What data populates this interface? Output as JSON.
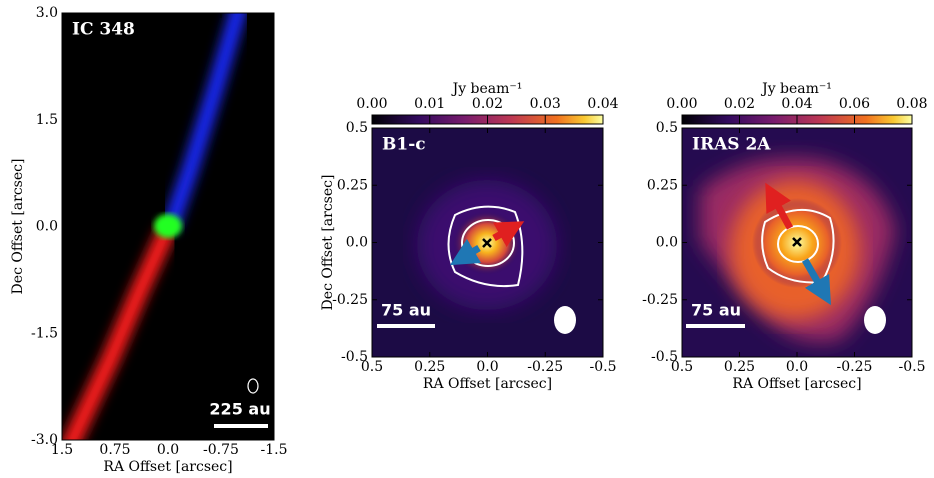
{
  "chart_data": [
    {
      "type": "image",
      "title": "IC 348",
      "scalebar": "225 au",
      "xlabel": "RA Offset [arcsec]",
      "ylabel": "Dec Offset [arcsec]",
      "xlim": [
        1.5,
        -1.5
      ],
      "ylim": [
        -3,
        3
      ],
      "xticks": [
        1.5,
        0.75,
        {
          "value": 0,
          "label": "0.0"
        },
        -0.75,
        -1.5
      ],
      "yticks": [
        {
          "value": 3,
          "label": "3.0"
        },
        1.5,
        {
          "value": 0,
          "label": "0.0"
        },
        -1.5,
        {
          "value": -3,
          "label": "-3.0"
        }
      ]
    },
    {
      "type": "image",
      "title": "B1-c",
      "scalebar": "75 au",
      "xlabel": "RA Offset [arcsec]",
      "ylabel": "Dec Offset [arcsec]",
      "xlim": [
        0.5,
        -0.5
      ],
      "ylim": [
        -0.5,
        0.5
      ],
      "xticks": [
        0.5,
        0.25,
        {
          "value": 0,
          "label": "0.0"
        },
        -0.25,
        -0.5
      ],
      "yticks": [
        0.5,
        0.25,
        {
          "value": 0,
          "label": "0.0"
        },
        -0.25,
        -0.5
      ],
      "colorbar_label": "Jy beam⁻¹",
      "clim": [
        0,
        0.04
      ],
      "cticks": [
        {
          "value": 0,
          "label": "0.00"
        },
        0.01,
        0.02,
        0.03,
        0.04
      ]
    },
    {
      "type": "image",
      "title": "IRAS 2A",
      "scalebar": "75 au",
      "xlabel": "RA Offset [arcsec]",
      "xlim": [
        0.5,
        -0.5
      ],
      "ylim": [
        -0.5,
        0.5
      ],
      "xticks": [
        0.5,
        0.25,
        {
          "value": 0,
          "label": "0.0"
        },
        -0.25,
        -0.5
      ],
      "yticks": [
        0.5,
        0.25,
        {
          "value": 0,
          "label": "0.0"
        },
        -0.25,
        -0.5
      ],
      "colorbar_label": "Jy beam⁻¹",
      "clim": [
        0,
        0.08
      ],
      "cticks": [
        {
          "value": 0,
          "label": "0.00"
        },
        0.02,
        0.04,
        0.06,
        0.08
      ]
    }
  ]
}
